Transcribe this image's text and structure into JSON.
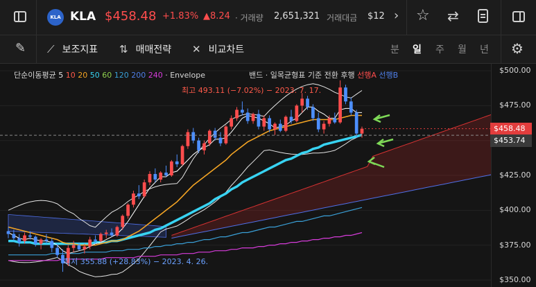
{
  "header": {
    "logo_text": "KLA",
    "ticker": "KLA",
    "price": "$458.48",
    "change_pct": "+1.83%",
    "change_abs": "▲8.24",
    "volume_label": "· 거래량",
    "volume": "2,651,321",
    "amount_label": "거래대금",
    "amount": "$12",
    "more_arrow": "›"
  },
  "toolbar": {
    "indicators": "보조지표",
    "strategy": "매매전략",
    "compare": "비교차트",
    "periods": [
      "분",
      "일",
      "주",
      "월",
      "년"
    ],
    "active_period": "일"
  },
  "legend": {
    "ma_label": "단순이동평균",
    "ma": [
      {
        "text": "5",
        "color": "#e8e8e8"
      },
      {
        "text": "10",
        "color": "#ff5a4a"
      },
      {
        "text": "20",
        "color": "#f5a524"
      },
      {
        "text": "50",
        "color": "#38d3f2"
      },
      {
        "text": "60",
        "color": "#8fd14f"
      },
      {
        "text": "120",
        "color": "#3aa0d8"
      },
      {
        "text": "200",
        "color": "#4f7fe8"
      },
      {
        "text": "240",
        "color": "#d83cdc"
      }
    ],
    "envelope": "· Envelope",
    "bands": "밴드",
    "ichimoku": "· 일목균형표",
    "base": "기준",
    "conversion": "전환",
    "lagging": "후행",
    "span_a": "선행A",
    "span_b": "선행B"
  },
  "annotations": {
    "high": "최고 493.11 (−7.02%) − 2023. 7. 17.",
    "low": "최저 355.88 (+28.83%) − 2023. 4. 26."
  },
  "price_axis": {
    "ticks": [
      "$500.00",
      "$475.00",
      "$450.00",
      "$425.00",
      "$400.00",
      "$375.00",
      "$350.00"
    ],
    "current_tag": "$458.48",
    "crosshair_tag": "$453.74"
  },
  "colors": {
    "up": "#ff4d4d",
    "down": "#4d8fff",
    "accent_green": "#7ed957",
    "logo_bg": "#2c63c9"
  },
  "chart_data": {
    "type": "candlestick",
    "ylim": [
      345,
      505
    ],
    "candles": [
      {
        "o": 385,
        "h": 388,
        "l": 380,
        "c": 383
      },
      {
        "o": 383,
        "h": 386,
        "l": 378,
        "c": 380
      },
      {
        "o": 380,
        "h": 383,
        "l": 374,
        "c": 377
      },
      {
        "o": 378,
        "h": 384,
        "l": 376,
        "c": 382
      },
      {
        "o": 382,
        "h": 385,
        "l": 379,
        "c": 381
      },
      {
        "o": 381,
        "h": 382,
        "l": 374,
        "c": 376
      },
      {
        "o": 376,
        "h": 380,
        "l": 372,
        "c": 379
      },
      {
        "o": 379,
        "h": 383,
        "l": 376,
        "c": 378
      },
      {
        "o": 378,
        "h": 380,
        "l": 370,
        "c": 373
      },
      {
        "o": 373,
        "h": 376,
        "l": 366,
        "c": 368
      },
      {
        "o": 368,
        "h": 372,
        "l": 355.88,
        "c": 362
      },
      {
        "o": 362,
        "h": 375,
        "l": 360,
        "c": 373
      },
      {
        "o": 373,
        "h": 378,
        "l": 370,
        "c": 375
      },
      {
        "o": 375,
        "h": 377,
        "l": 371,
        "c": 372
      },
      {
        "o": 372,
        "h": 376,
        "l": 369,
        "c": 374
      },
      {
        "o": 374,
        "h": 381,
        "l": 372,
        "c": 379
      },
      {
        "o": 379,
        "h": 382,
        "l": 376,
        "c": 378
      },
      {
        "o": 378,
        "h": 384,
        "l": 377,
        "c": 383
      },
      {
        "o": 383,
        "h": 386,
        "l": 380,
        "c": 384
      },
      {
        "o": 384,
        "h": 387,
        "l": 381,
        "c": 382
      },
      {
        "o": 382,
        "h": 389,
        "l": 381,
        "c": 388
      },
      {
        "o": 388,
        "h": 397,
        "l": 386,
        "c": 396
      },
      {
        "o": 396,
        "h": 405,
        "l": 394,
        "c": 404
      },
      {
        "o": 404,
        "h": 414,
        "l": 402,
        "c": 412
      },
      {
        "o": 412,
        "h": 418,
        "l": 408,
        "c": 410
      },
      {
        "o": 410,
        "h": 422,
        "l": 409,
        "c": 420
      },
      {
        "o": 420,
        "h": 428,
        "l": 418,
        "c": 426
      },
      {
        "o": 426,
        "h": 430,
        "l": 420,
        "c": 422
      },
      {
        "o": 422,
        "h": 428,
        "l": 420,
        "c": 427
      },
      {
        "o": 427,
        "h": 432,
        "l": 424,
        "c": 425
      },
      {
        "o": 425,
        "h": 436,
        "l": 424,
        "c": 435
      },
      {
        "o": 435,
        "h": 440,
        "l": 431,
        "c": 433
      },
      {
        "o": 433,
        "h": 447,
        "l": 432,
        "c": 446
      },
      {
        "o": 446,
        "h": 458,
        "l": 444,
        "c": 456
      },
      {
        "o": 456,
        "h": 459,
        "l": 448,
        "c": 450
      },
      {
        "o": 450,
        "h": 452,
        "l": 441,
        "c": 443
      },
      {
        "o": 443,
        "h": 450,
        "l": 440,
        "c": 448
      },
      {
        "o": 448,
        "h": 458,
        "l": 446,
        "c": 457
      },
      {
        "o": 457,
        "h": 459,
        "l": 450,
        "c": 452
      },
      {
        "o": 452,
        "h": 456,
        "l": 446,
        "c": 448
      },
      {
        "o": 448,
        "h": 461,
        "l": 447,
        "c": 460
      },
      {
        "o": 460,
        "h": 468,
        "l": 458,
        "c": 466
      },
      {
        "o": 466,
        "h": 474,
        "l": 464,
        "c": 472
      },
      {
        "o": 472,
        "h": 478,
        "l": 468,
        "c": 470
      },
      {
        "o": 470,
        "h": 473,
        "l": 462,
        "c": 464
      },
      {
        "o": 464,
        "h": 470,
        "l": 462,
        "c": 469
      },
      {
        "o": 469,
        "h": 472,
        "l": 458,
        "c": 460
      },
      {
        "o": 460,
        "h": 468,
        "l": 457,
        "c": 466
      },
      {
        "o": 466,
        "h": 468,
        "l": 456,
        "c": 458
      },
      {
        "o": 458,
        "h": 463,
        "l": 454,
        "c": 462
      },
      {
        "o": 462,
        "h": 465,
        "l": 456,
        "c": 457
      },
      {
        "o": 457,
        "h": 468,
        "l": 456,
        "c": 467
      },
      {
        "o": 467,
        "h": 472,
        "l": 462,
        "c": 464
      },
      {
        "o": 464,
        "h": 476,
        "l": 463,
        "c": 475
      },
      {
        "o": 475,
        "h": 484,
        "l": 470,
        "c": 480
      },
      {
        "o": 480,
        "h": 482,
        "l": 472,
        "c": 474
      },
      {
        "o": 474,
        "h": 476,
        "l": 464,
        "c": 466
      },
      {
        "o": 466,
        "h": 470,
        "l": 456,
        "c": 458
      },
      {
        "o": 458,
        "h": 464,
        "l": 455,
        "c": 462
      },
      {
        "o": 462,
        "h": 468,
        "l": 460,
        "c": 466
      },
      {
        "o": 466,
        "h": 470,
        "l": 462,
        "c": 463
      },
      {
        "o": 463,
        "h": 493.11,
        "l": 462,
        "c": 488
      },
      {
        "o": 488,
        "h": 490,
        "l": 476,
        "c": 478
      },
      {
        "o": 478,
        "h": 481,
        "l": 468,
        "c": 470
      },
      {
        "o": 470,
        "h": 472,
        "l": 452,
        "c": 455
      },
      {
        "o": 455,
        "h": 460,
        "l": 452,
        "c": 458.48
      }
    ],
    "ma5": [
      384,
      382,
      380,
      379,
      380,
      379,
      378,
      378,
      377,
      375,
      371,
      369,
      370,
      371,
      372,
      374,
      376,
      377,
      379,
      381,
      383,
      387,
      392,
      398,
      404,
      410,
      416,
      420,
      424,
      424,
      427,
      428,
      432,
      436,
      440,
      443,
      445,
      447,
      451,
      451,
      452,
      456,
      461,
      466,
      468,
      467,
      466,
      464,
      462,
      459,
      460,
      461,
      464,
      466,
      470,
      474,
      474,
      471,
      469,
      466,
      466,
      472,
      473,
      473,
      470,
      470
    ],
    "ma20": [
      388,
      387,
      386,
      385,
      384,
      383,
      382,
      381,
      380,
      379,
      377,
      376,
      376,
      375,
      375,
      375,
      375,
      376,
      377,
      378,
      378,
      379,
      381,
      383,
      385,
      388,
      391,
      394,
      397,
      400,
      403,
      406,
      410,
      414,
      418,
      421,
      424,
      427,
      430,
      433,
      436,
      440,
      443,
      446,
      449,
      451,
      453,
      455,
      457,
      458,
      459,
      460,
      461,
      462,
      463,
      464,
      465,
      465,
      465,
      465,
      465,
      466,
      467,
      468,
      468,
      468
    ],
    "ma50": [
      378,
      378,
      377,
      377,
      377,
      376,
      376,
      376,
      376,
      376,
      376,
      376,
      376,
      376,
      376,
      376,
      377,
      377,
      377,
      378,
      378,
      379,
      380,
      381,
      382,
      383,
      384,
      386,
      387,
      389,
      391,
      393,
      395,
      397,
      399,
      401,
      403,
      405,
      408,
      410,
      412,
      415,
      417,
      420,
      422,
      424,
      426,
      428,
      430,
      432,
      434,
      436,
      437,
      439,
      441,
      442,
      444,
      445,
      447,
      448,
      449,
      450,
      451,
      452,
      453,
      454
    ],
    "ma120": [
      368,
      368,
      368,
      368,
      368,
      368,
      368,
      368,
      369,
      369,
      369,
      369,
      369,
      369,
      370,
      370,
      370,
      370,
      370,
      371,
      371,
      371,
      372,
      372,
      372,
      373,
      373,
      374,
      374,
      375,
      375,
      376,
      376,
      377,
      377,
      378,
      379,
      379,
      380,
      381,
      381,
      382,
      383,
      384,
      384,
      385,
      386,
      387,
      388,
      388,
      389,
      390,
      391,
      392,
      392,
      393,
      394,
      395,
      396,
      396,
      397,
      398,
      399,
      400,
      401,
      402
    ],
    "ma240": [
      364,
      364,
      364,
      364,
      364,
      364,
      364,
      364,
      364,
      364,
      365,
      365,
      365,
      365,
      365,
      365,
      365,
      365,
      366,
      366,
      366,
      366,
      366,
      366,
      367,
      367,
      367,
      367,
      368,
      368,
      368,
      368,
      369,
      369,
      369,
      370,
      370,
      370,
      371,
      371,
      371,
      372,
      372,
      373,
      373,
      373,
      374,
      374,
      375,
      375,
      376,
      376,
      377,
      377,
      378,
      378,
      379,
      379,
      380,
      380,
      381,
      381,
      382,
      382,
      383,
      384
    ]
  }
}
